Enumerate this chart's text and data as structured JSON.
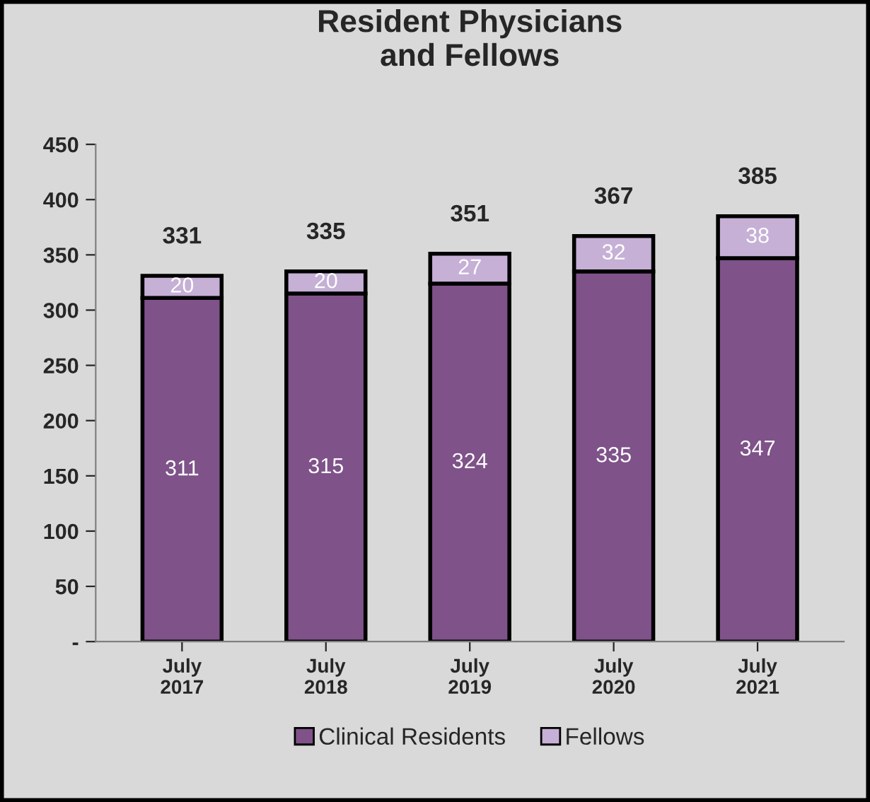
{
  "chart_data": {
    "type": "bar",
    "title": "Resident Physicians\nand Fellows",
    "stacked": true,
    "categories": [
      "July\n2017",
      "July\n2018",
      "July\n2019",
      "July\n2020",
      "July\n2021"
    ],
    "series": [
      {
        "name": "Clinical Residents",
        "color": "#7f5289",
        "values": [
          311,
          315,
          324,
          335,
          347
        ]
      },
      {
        "name": "Fellows",
        "color": "#c6b0d6",
        "values": [
          20,
          20,
          27,
          32,
          38
        ]
      }
    ],
    "totals": [
      "331",
      "335",
      "351",
      "367",
      "385"
    ],
    "data_labels": true,
    "ylim": [
      0,
      450
    ],
    "yticks": [
      {
        "value": 0,
        "label": "-"
      },
      50,
      100,
      150,
      200,
      250,
      300,
      350,
      400,
      450
    ],
    "grid": false,
    "legend": "bottom"
  }
}
